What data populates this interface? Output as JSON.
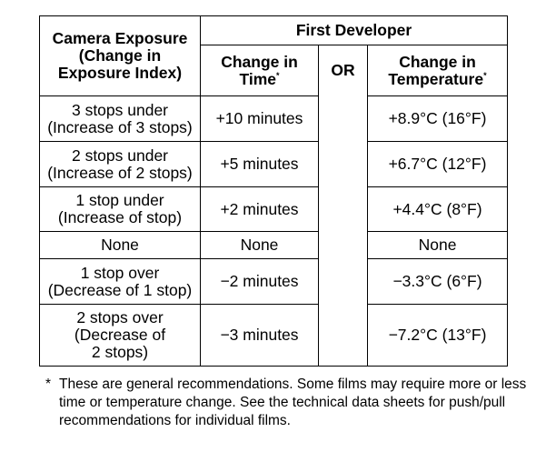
{
  "header": {
    "camera_exposure": [
      "Camera Exposure",
      "(Change in",
      "Exposure Index)"
    ],
    "first_developer": "First Developer",
    "change_in_time": [
      "Change in",
      "Time"
    ],
    "or": "OR",
    "change_in_temperature": [
      "Change in",
      "Temperature"
    ],
    "asterisk": "*"
  },
  "rows": [
    {
      "exposure": [
        "3 stops under",
        "(Increase of 3 stops)"
      ],
      "time": "+10 minutes",
      "temperature": "+8.9°C (16°F)"
    },
    {
      "exposure": [
        "2 stops under",
        "(Increase of 2 stops)"
      ],
      "time": "+5 minutes",
      "temperature": "+6.7°C (12°F)"
    },
    {
      "exposure": [
        "1 stop under",
        "(Increase of stop)"
      ],
      "time": "+2 minutes",
      "temperature": "+4.4°C (8°F)"
    },
    {
      "exposure": [
        "None"
      ],
      "time": "None",
      "temperature": "None"
    },
    {
      "exposure": [
        "1 stop over",
        "(Decrease of 1 stop)"
      ],
      "time": "−2 minutes",
      "temperature": "−3.3°C (6°F)"
    },
    {
      "exposure": [
        "2 stops over",
        "(Decrease of",
        "2 stops)"
      ],
      "time": "−3 minutes",
      "temperature": "−7.2°C (13°F)"
    }
  ],
  "footnote": {
    "mark": "*",
    "text": "These are general recommendations. Some films may require more or less time or temperature change. See the technical data sheets for push/pull recommendations for individual films."
  }
}
